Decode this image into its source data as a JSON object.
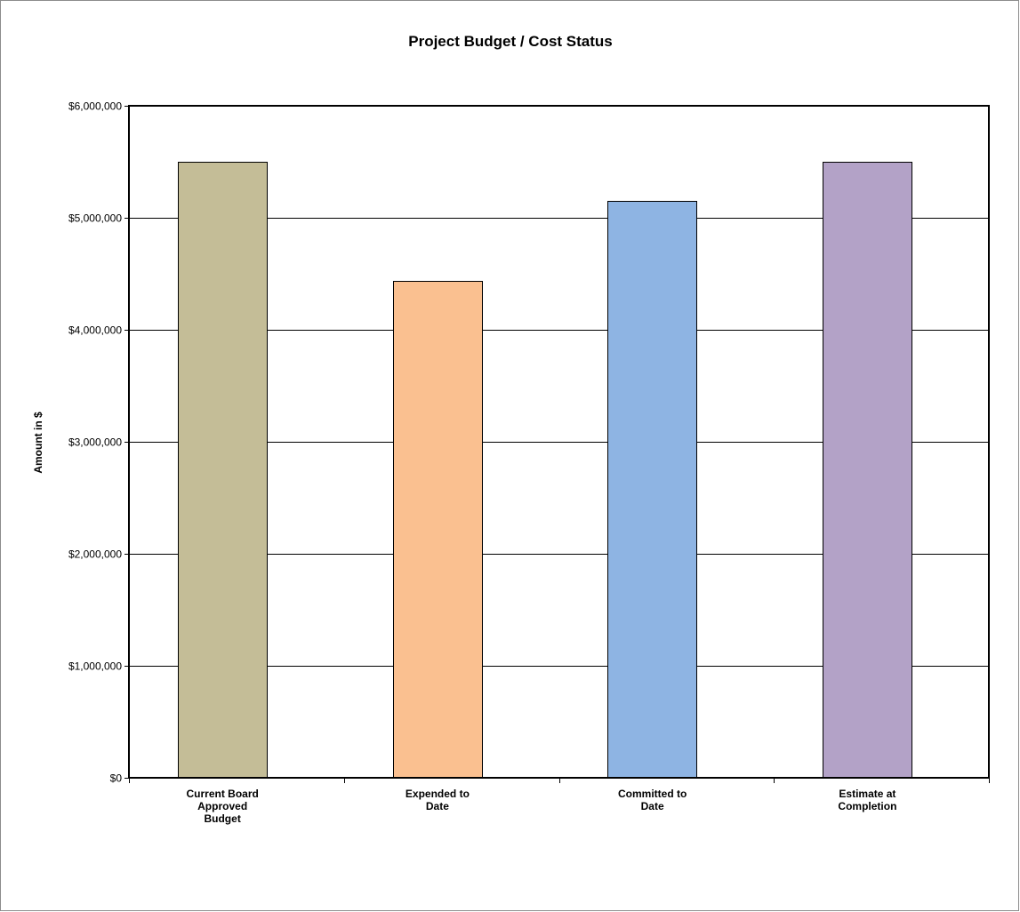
{
  "chart_data": {
    "type": "bar",
    "title": "Project Budget / Cost Status",
    "xlabel": "",
    "ylabel": "Amount in $",
    "ylim": [
      0,
      6000000
    ],
    "yticks": [
      0,
      1000000,
      2000000,
      3000000,
      4000000,
      5000000,
      6000000
    ],
    "ytick_labels": [
      "$0",
      "$1,000,000",
      "$2,000,000",
      "$3,000,000",
      "$4,000,000",
      "$5,000,000",
      "$6,000,000"
    ],
    "grid": true,
    "categories": [
      [
        "Current Board",
        "Approved",
        "Budget"
      ],
      [
        "Expended to",
        "Date"
      ],
      [
        "Committed to",
        "Date"
      ],
      [
        "Estimate at",
        "Completion"
      ]
    ],
    "values": [
      5500000,
      4440000,
      5150000,
      5500000
    ],
    "colors": [
      "#c4bd97",
      "#fac090",
      "#8eb4e3",
      "#b3a2c7"
    ]
  }
}
